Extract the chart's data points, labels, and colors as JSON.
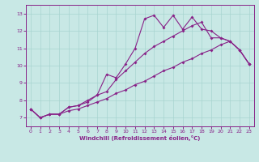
{
  "background_color": "#c8e8e5",
  "grid_color": "#a8d4d0",
  "line_color": "#882288",
  "xlabel": "Windchill (Refroidissement éolien,°C)",
  "x": [
    0,
    1,
    2,
    3,
    4,
    5,
    6,
    7,
    8,
    9,
    10,
    11,
    12,
    13,
    14,
    15,
    16,
    17,
    18,
    19,
    20,
    21,
    22,
    23
  ],
  "line1": [
    7.5,
    7.0,
    7.2,
    7.2,
    7.6,
    7.7,
    8.0,
    8.3,
    9.5,
    9.3,
    10.1,
    11.0,
    12.7,
    12.9,
    12.2,
    12.9,
    12.1,
    12.8,
    12.1,
    12.0,
    11.6,
    11.4,
    10.9,
    10.1
  ],
  "line2": [
    7.5,
    7.0,
    7.2,
    7.2,
    7.6,
    7.7,
    7.9,
    8.3,
    8.5,
    9.2,
    9.7,
    10.2,
    10.7,
    11.1,
    11.4,
    11.7,
    12.0,
    12.3,
    12.5,
    11.6,
    11.6,
    11.4,
    10.9,
    10.1
  ],
  "line3": [
    7.5,
    7.0,
    7.2,
    7.2,
    7.4,
    7.5,
    7.7,
    7.9,
    8.1,
    8.4,
    8.6,
    8.9,
    9.1,
    9.4,
    9.7,
    9.9,
    10.2,
    10.4,
    10.7,
    10.9,
    11.2,
    11.4,
    10.9,
    10.1
  ],
  "ylim": [
    6.5,
    13.5
  ],
  "yticks": [
    7,
    8,
    9,
    10,
    11,
    12,
    13
  ],
  "xticks": [
    0,
    1,
    2,
    3,
    4,
    5,
    6,
    7,
    8,
    9,
    10,
    11,
    12,
    13,
    14,
    15,
    16,
    17,
    18,
    19,
    20,
    21,
    22,
    23
  ]
}
